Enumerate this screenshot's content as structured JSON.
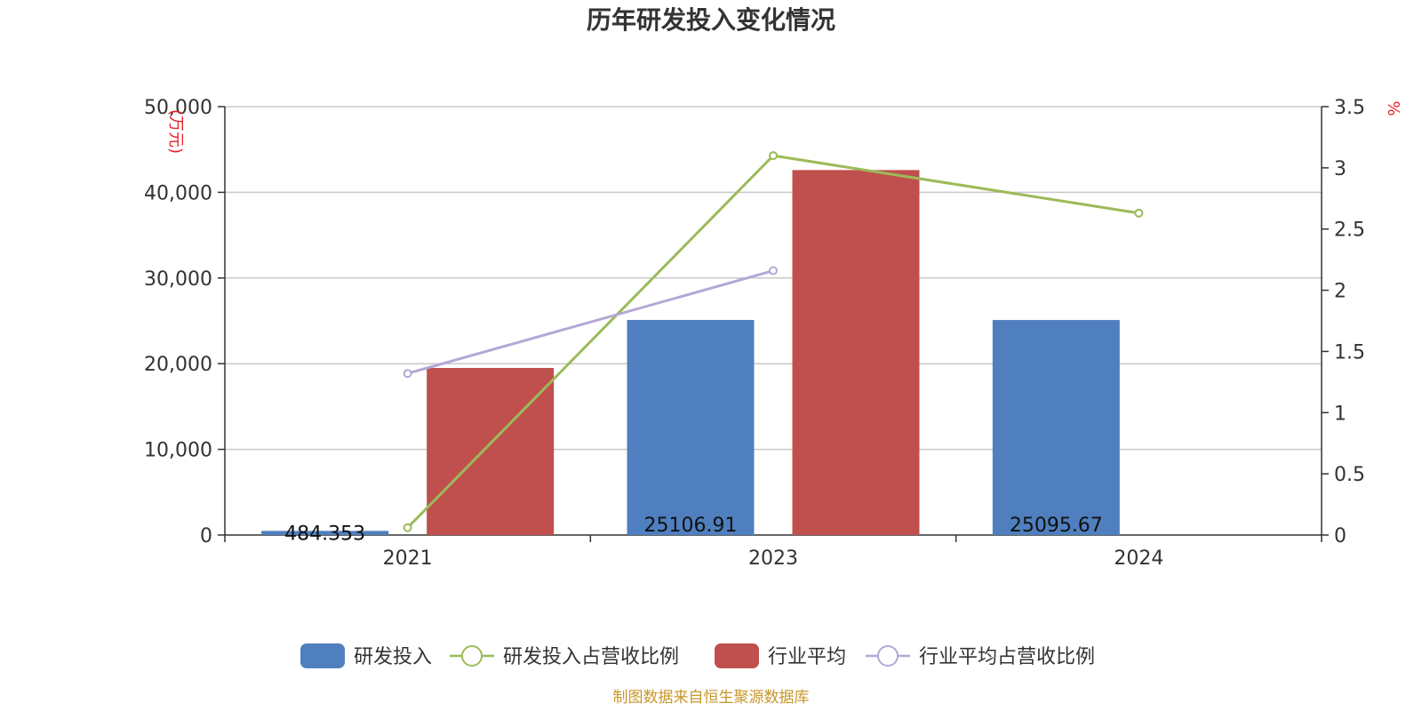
{
  "chart_data": {
    "type": "bar",
    "title": "历年研发投入变化情况",
    "categories": [
      "2021",
      "2023",
      "2024"
    ],
    "y_left": {
      "unit": "(万元)",
      "ylim": [
        0,
        50000
      ],
      "ticks": [
        0,
        10000,
        20000,
        30000,
        40000,
        50000
      ],
      "tick_labels": [
        "0",
        "10,000",
        "20,000",
        "30,000",
        "40,000",
        "50,000"
      ]
    },
    "y_right": {
      "unit": "%",
      "ylim": [
        0,
        3.5
      ],
      "ticks": [
        0,
        0.5,
        1,
        1.5,
        2,
        2.5,
        3,
        3.5
      ],
      "tick_labels": [
        "0",
        "0.5",
        "1",
        "1.5",
        "2",
        "2.5",
        "3",
        "3.5"
      ]
    },
    "grid": true,
    "legend_position": "bottom-center",
    "series": [
      {
        "name": "研发投入",
        "kind": "bar",
        "axis": "left",
        "color": "#4f7fbe",
        "values": [
          484.353,
          25106.91,
          25095.67
        ],
        "labels": [
          "484.353",
          "25106.91",
          "25095.67"
        ]
      },
      {
        "name": "研发投入占营收比例",
        "kind": "line",
        "axis": "right",
        "color": "#9bbb59",
        "values": [
          0.06,
          3.1,
          2.63
        ]
      },
      {
        "name": "行业平均",
        "kind": "bar",
        "axis": "left",
        "color": "#c0504d",
        "values": [
          19500,
          42600,
          null
        ]
      },
      {
        "name": "行业平均占营收比例",
        "kind": "line",
        "axis": "right",
        "color": "#b4a7d6",
        "values": [
          1.32,
          2.16,
          null
        ]
      }
    ],
    "source": "制图数据来自恒生聚源数据库"
  }
}
